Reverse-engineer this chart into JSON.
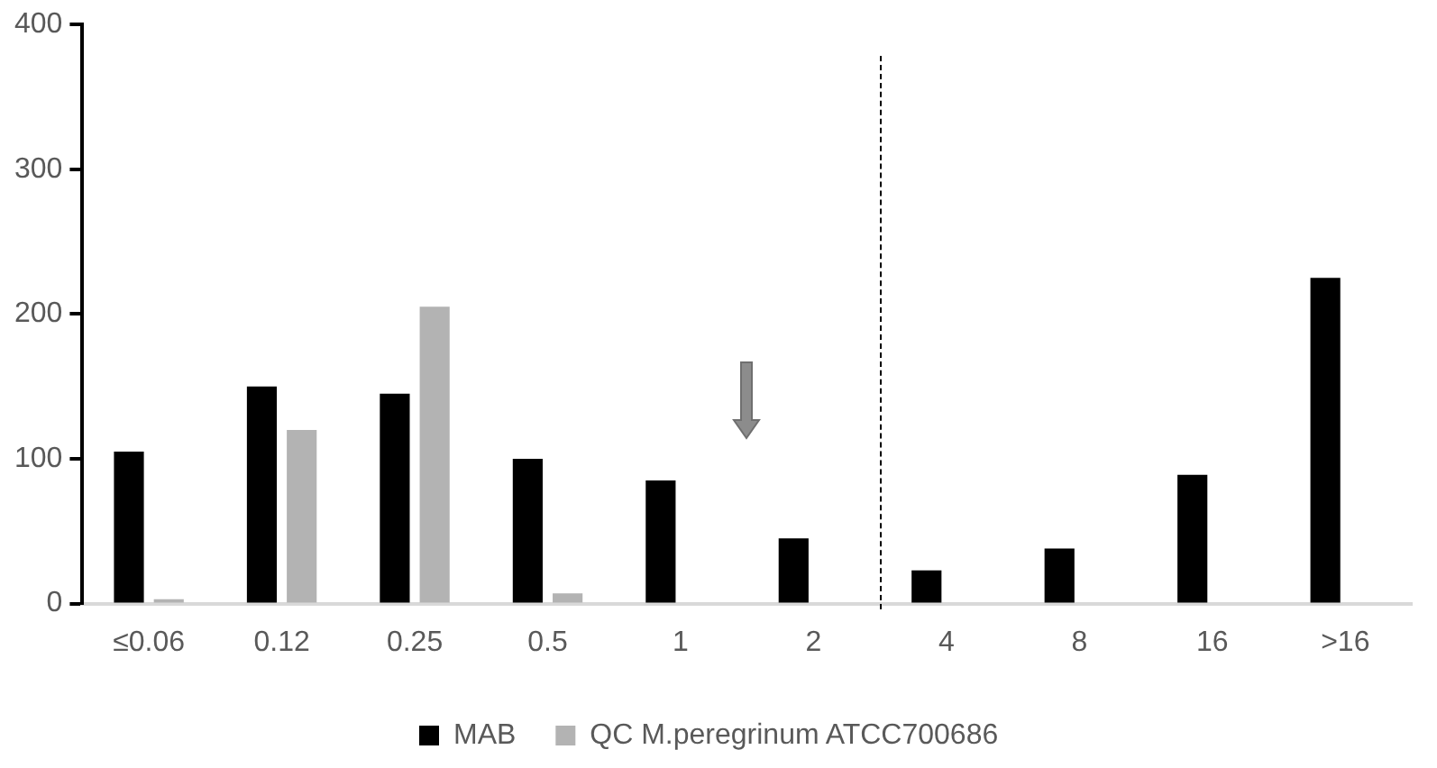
{
  "chart_data": {
    "type": "bar",
    "categories": [
      "≤0.06",
      "0.12",
      "0.25",
      "0.5",
      "1",
      "2",
      "4",
      "8",
      "16",
      ">16"
    ],
    "series": [
      {
        "name": "MAB",
        "color": "#000000",
        "values": [
          105,
          150,
          145,
          100,
          85,
          45,
          23,
          38,
          89,
          225
        ]
      },
      {
        "name": "QC M.peregrinum ATCC700686",
        "color": "#b3b3b3",
        "values": [
          3,
          120,
          205,
          7,
          null,
          null,
          null,
          null,
          null,
          null
        ]
      }
    ],
    "ylim": [
      0,
      400
    ],
    "yticks": [
      0,
      100,
      200,
      300,
      400
    ],
    "grid": false,
    "legend": "bottom"
  }
}
